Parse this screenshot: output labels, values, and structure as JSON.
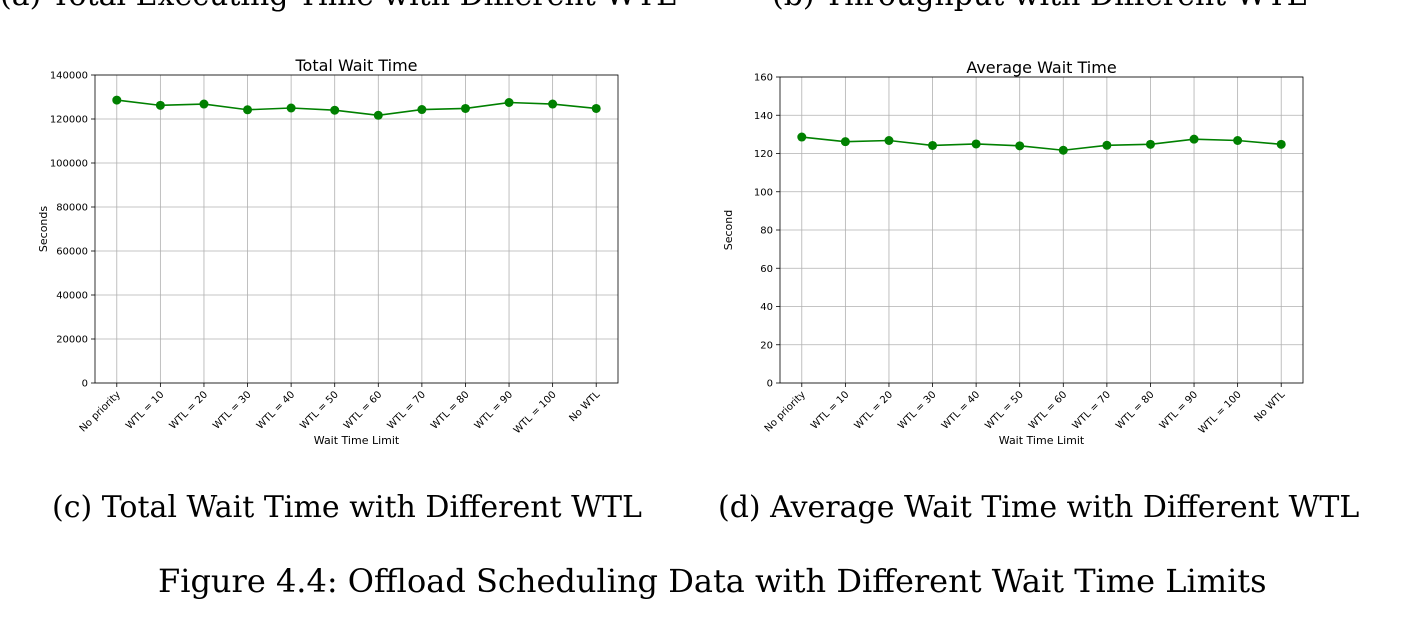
{
  "captions": {
    "top_left": "(a) Total Executing Time with Different WTL",
    "top_right": "(b) Throughput with Different WTL",
    "c": "(c) Total Wait Time with Different WTL",
    "d": "(d) Average Wait Time with Different WTL",
    "figure": "Figure 4.4: Offload Scheduling Data with Different Wait Time Limits"
  },
  "colors": {
    "series": "#008000",
    "grid": "#b0b0b0",
    "axis": "#000000"
  },
  "chart_data": [
    {
      "type": "line",
      "title": "Total Wait Time",
      "xlabel": "Wait Time Limit",
      "ylabel": "Seconds",
      "categories": [
        "No priority",
        "WTL = 10",
        "WTL = 20",
        "WTL = 30",
        "WTL = 40",
        "WTL = 50",
        "WTL = 60",
        "WTL = 70",
        "WTL = 80",
        "WTL = 90",
        "WTL = 100",
        "No WTL"
      ],
      "series": [
        {
          "values": [
            128600,
            126200,
            126800,
            124200,
            125000,
            124000,
            121700,
            124300,
            124800,
            127500,
            126800,
            124800
          ]
        }
      ],
      "ylim": [
        0,
        140000
      ],
      "yticks": [
        0,
        20000,
        40000,
        60000,
        80000,
        100000,
        120000,
        140000
      ],
      "grid": true
    },
    {
      "type": "line",
      "title": "Average Wait Time",
      "xlabel": "Wait Time Limit",
      "ylabel": "Second",
      "categories": [
        "No priority",
        "WTL = 10",
        "WTL = 20",
        "WTL = 30",
        "WTL = 40",
        "WTL = 50",
        "WTL = 60",
        "WTL = 70",
        "WTL = 80",
        "WTL = 90",
        "WTL = 100",
        "No WTL"
      ],
      "series": [
        {
          "values": [
            128.6,
            126.2,
            126.8,
            124.2,
            125.0,
            124.0,
            121.7,
            124.3,
            124.8,
            127.5,
            126.8,
            124.8
          ]
        }
      ],
      "ylim": [
        0,
        160
      ],
      "yticks": [
        0,
        20,
        40,
        60,
        80,
        100,
        120,
        140,
        160
      ],
      "grid": true
    }
  ]
}
